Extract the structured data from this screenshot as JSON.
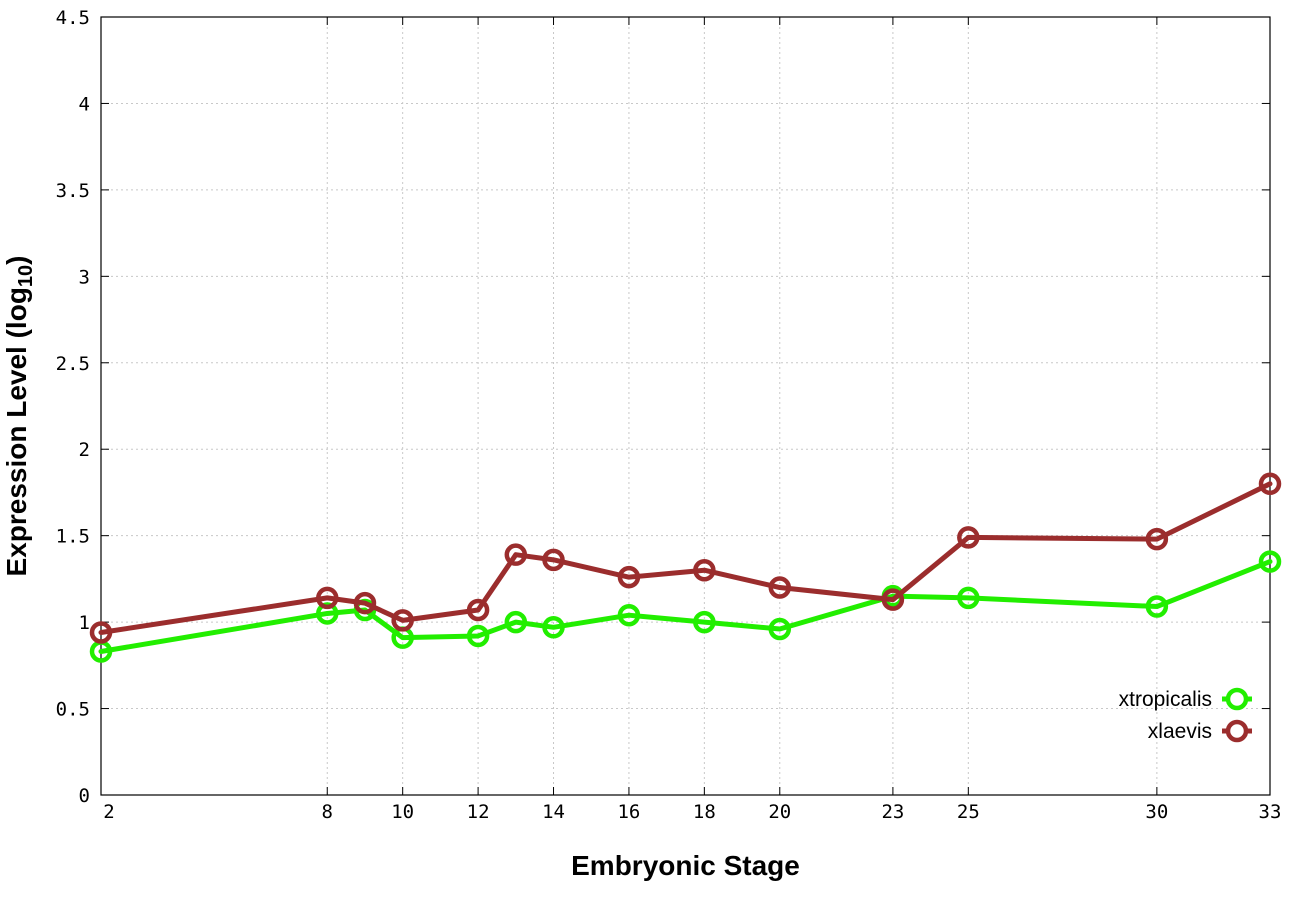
{
  "chart_data": {
    "type": "line",
    "xlabel": "Embryonic Stage",
    "ylabel_main": "Expression Level (log",
    "ylabel_sub": "10",
    "ylabel_close": ")",
    "xlim": [
      2,
      33
    ],
    "ylim": [
      0,
      4.5
    ],
    "x_ticks": [
      2,
      8,
      10,
      12,
      14,
      16,
      18,
      20,
      23,
      25,
      30,
      33
    ],
    "x_tick_labels": [
      "2",
      "8",
      "10",
      "12",
      "14",
      "16",
      "18",
      "20",
      "23",
      "25",
      "30",
      "33"
    ],
    "y_ticks": [
      0,
      0.5,
      1,
      1.5,
      2,
      2.5,
      3,
      3.5,
      4,
      4.5
    ],
    "y_tick_labels": [
      "0",
      "0.5",
      "1",
      "1.5",
      "2",
      "2.5",
      "3",
      "3.5",
      "4",
      "4.5"
    ],
    "grid": true,
    "legend_position": "bottom-right",
    "x": [
      2,
      8,
      9,
      10,
      12,
      13,
      14,
      16,
      18,
      20,
      23,
      25,
      30,
      33
    ],
    "series": [
      {
        "name": "xtropicalis",
        "color": "#22ee00",
        "values": [
          0.83,
          1.05,
          1.07,
          0.91,
          0.92,
          1.0,
          0.97,
          1.04,
          1.0,
          0.96,
          1.15,
          1.14,
          1.09,
          1.35
        ]
      },
      {
        "name": "xlaevis",
        "color": "#9b2d2d",
        "values": [
          0.94,
          1.14,
          1.11,
          1.01,
          1.07,
          1.39,
          1.36,
          1.26,
          1.3,
          1.2,
          1.13,
          1.49,
          1.48,
          1.8
        ]
      }
    ]
  }
}
